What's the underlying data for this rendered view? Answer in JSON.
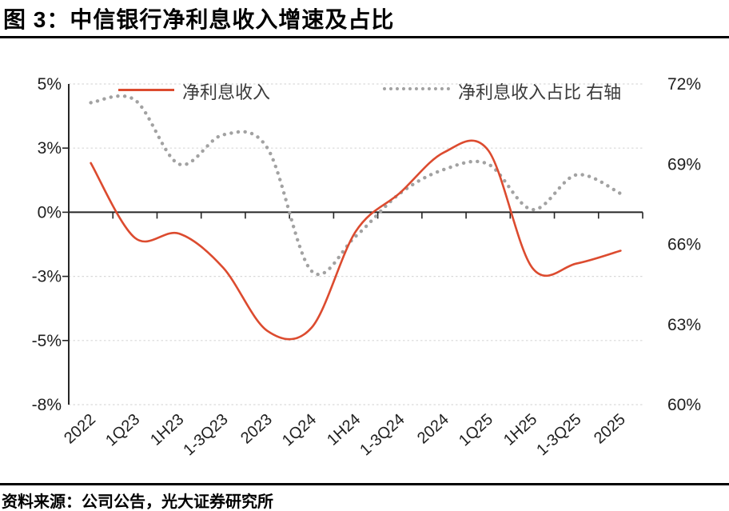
{
  "figure": {
    "title": "图 3：中信银行净利息收入增速及占比",
    "source_note": "资料来源：公司公告，光大证券研究所"
  },
  "chart_data": {
    "type": "line",
    "title": "中信银行净利息收入增速及占比",
    "categories": [
      "2022",
      "1Q23",
      "1H23",
      "1-3Q23",
      "2023",
      "1Q24",
      "1H24",
      "1-3Q24",
      "2024",
      "1Q25",
      "1H25",
      "1-3Q25",
      "2025"
    ],
    "series": [
      {
        "name": "净利息收入",
        "axis": "left",
        "style": "solid",
        "color": "#DC4B2F",
        "values": [
          2.3,
          -1.2,
          -1.0,
          -2.6,
          -4.7,
          -4.6,
          -0.9,
          0.9,
          2.8,
          2.9,
          -2.6,
          -2.4,
          -1.8
        ]
      },
      {
        "name": "净利息收入占比 右轴",
        "axis": "right",
        "style": "dotted",
        "color": "#A2A2A2",
        "values": [
          71.3,
          71.4,
          69.0,
          70.1,
          69.6,
          65.0,
          66.3,
          67.9,
          68.8,
          69.0,
          67.3,
          68.6,
          67.9
        ]
      }
    ],
    "left_axis": {
      "tick_labels": [
        "5%",
        "3%",
        "0%",
        "-3%",
        "-5%",
        "-8%"
      ],
      "unit": "%"
    },
    "right_axis": {
      "tick_labels": [
        "72%",
        "69%",
        "66%",
        "63%",
        "60%"
      ],
      "unit": "%"
    },
    "legend": {
      "position": "top",
      "entries": [
        "净利息收入",
        "净利息收入占比 右轴"
      ]
    },
    "grid": true
  }
}
